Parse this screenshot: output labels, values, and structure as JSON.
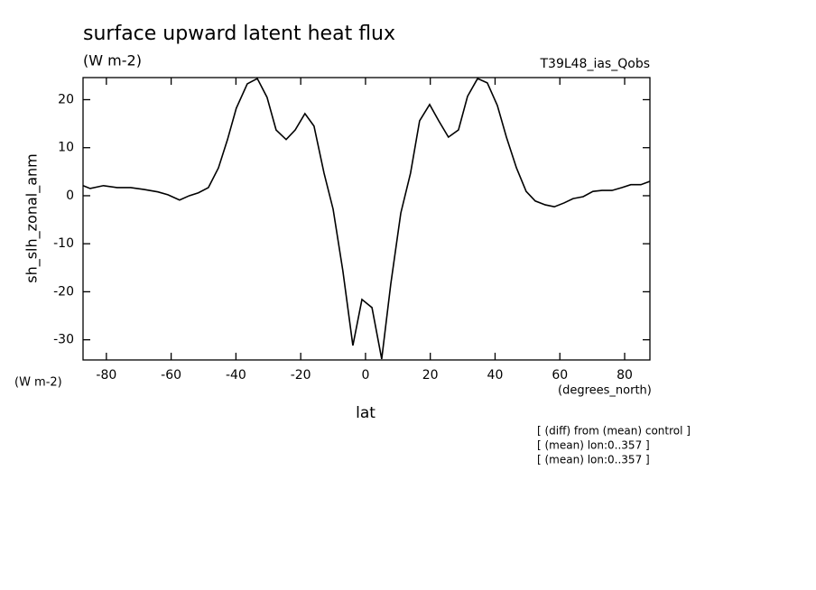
{
  "chart_data": {
    "type": "line",
    "title": "surface upward latent heat flux",
    "subtitle": "(W m-2)",
    "run_label": "T39L48_ias_Qobs",
    "y_label": "sh_slh_zonal_anm",
    "y_units": "(W m-2)",
    "x_label": "lat",
    "x_units": "(degrees_north)",
    "notes": [
      "[ (diff) from (mean) control ]",
      "[ (mean) lon:0..357 ]",
      "[ (mean) lon:0..357 ]"
    ],
    "x": [
      -87.2,
      -85,
      -80.9,
      -76.7,
      -72.5,
      -68.3,
      -64.1,
      -61,
      -57.4,
      -54.4,
      -51.6,
      -48.5,
      -45.4,
      -42.6,
      -39.9,
      -36.5,
      -33.4,
      -30.4,
      -27.6,
      -24.5,
      -21.7,
      -18.7,
      -15.9,
      -12.8,
      -10,
      -7,
      -3.9,
      -1.1,
      2,
      5,
      7.8,
      10.9,
      13.9,
      16.7,
      19.8,
      22.6,
      25.6,
      28.7,
      31.5,
      34.6,
      37.6,
      40.7,
      43.5,
      46.6,
      49.6,
      52.4,
      55.5,
      58.3,
      61.3,
      64.1,
      67.2,
      70.2,
      73,
      76.1,
      79.2,
      81.9,
      85,
      87.8
    ],
    "series": [
      {
        "name": "sh_slh_zonal_anm",
        "color": "#000000",
        "values": [
          2.1,
          1.5,
          2.1,
          1.7,
          1.7,
          1.3,
          0.8,
          0.2,
          -0.9,
          0,
          0.6,
          1.7,
          5.8,
          11.7,
          18.2,
          23.3,
          24.4,
          20.5,
          13.7,
          11.7,
          13.7,
          17.1,
          14.5,
          4.7,
          -2.8,
          -15.6,
          -31.2,
          -21.6,
          -23.3,
          -34,
          -18.4,
          -3.6,
          4.7,
          15.6,
          19,
          15.6,
          12.2,
          13.7,
          20.7,
          24.4,
          23.5,
          18.8,
          12.2,
          5.8,
          0.9,
          -1.1,
          -1.9,
          -2.3,
          -1.5,
          -0.6,
          -0.2,
          0.9,
          1.1,
          1.1,
          1.7,
          2.3,
          2.3,
          3
        ]
      }
    ],
    "xlim": [
      -87.2,
      87.8
    ],
    "ylim": [
      -34.2,
      24.6
    ],
    "xticks": [
      -80,
      -60,
      -40,
      -20,
      0,
      20,
      40,
      60,
      80
    ],
    "yticks": [
      -30,
      -20,
      -10,
      0,
      10,
      20
    ]
  }
}
